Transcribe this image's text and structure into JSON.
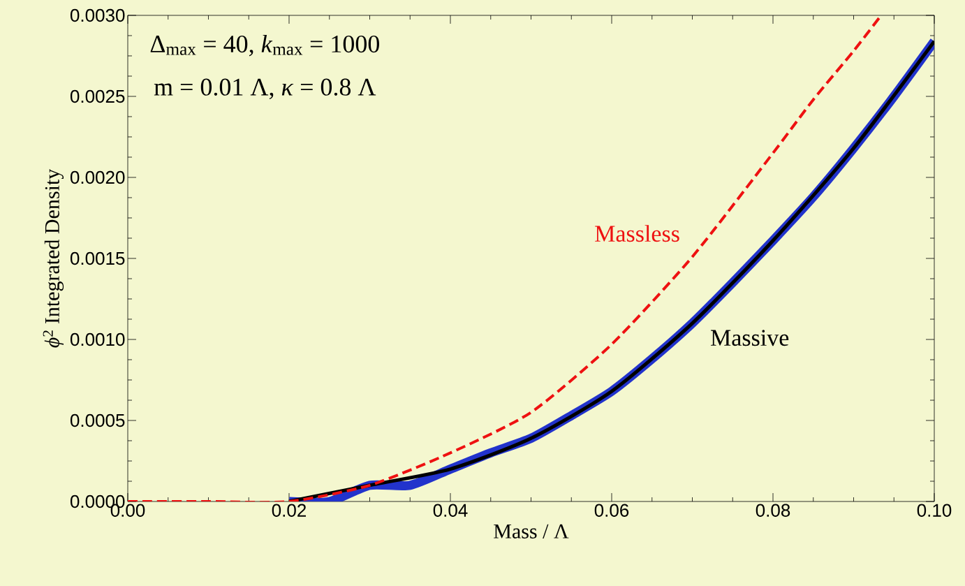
{
  "chart_data": {
    "type": "line",
    "xlabel": "Mass / Λ",
    "ylabel": "*ϕ*$^{2}$ Integrated Density",
    "xlim": [
      0,
      0.1
    ],
    "ylim": [
      0,
      0.003
    ],
    "xticks": [
      {
        "value": 0,
        "label": "0.00"
      },
      {
        "value": 0.02,
        "label": "0.02"
      },
      {
        "value": 0.04,
        "label": "0.04"
      },
      {
        "value": 0.06,
        "label": "0.06"
      },
      {
        "value": 0.08,
        "label": "0.08"
      },
      {
        "value": 0.1,
        "label": "0.10"
      }
    ],
    "yticks": [
      {
        "value": 0,
        "label": "0.0000"
      },
      {
        "value": 0.0005,
        "label": "0.0005"
      },
      {
        "value": 0.001,
        "label": "0.0010"
      },
      {
        "value": 0.0015,
        "label": "0.0015"
      },
      {
        "value": 0.002,
        "label": "0.0020"
      },
      {
        "value": 0.0025,
        "label": "0.0025"
      },
      {
        "value": 0.003,
        "label": "0.0030"
      }
    ],
    "grid": false,
    "annotations": [
      "Δ$_{max}$ = 40, *k*$_{max}$ = 1000",
      "m = 0.01 Λ, *κ* = 0.8 Λ"
    ],
    "series": [
      {
        "color": "#2233cc",
        "line_style": "solid",
        "x": [
          0.02,
          0.025,
          0.03,
          0.035,
          0.04,
          0.045,
          0.05,
          0.055,
          0.06,
          0.065,
          0.07,
          0.075,
          0.08,
          0.085,
          0.09,
          0.095,
          0.1
        ],
        "values": [
          0,
          0,
          0.0001,
          0.0001,
          0.0002,
          0.0003,
          0.00039,
          0.00053,
          0.00068,
          0.00088,
          0.0011,
          0.00135,
          0.00161,
          0.00188,
          0.00218,
          0.0025,
          0.00284
        ]
      },
      {
        "name": "Massive",
        "color": "#000000",
        "line_style": "solid",
        "x": [
          0.02,
          0.03,
          0.04,
          0.05,
          0.06,
          0.07,
          0.08,
          0.09,
          0.1
        ],
        "values": [
          0,
          0.0001,
          0.0002,
          0.00039,
          0.00068,
          0.0011,
          0.00161,
          0.00218,
          0.00284
        ]
      },
      {
        "name": "Massless",
        "color": "#ee1111",
        "line_style": "dashed",
        "x": [
          0,
          0.01,
          0.02,
          0.03,
          0.04,
          0.05,
          0.06,
          0.07,
          0.08,
          0.085,
          0.09,
          0.0934
        ],
        "values": [
          0,
          0,
          0,
          0.0001,
          0.0003,
          0.00055,
          0.00097,
          0.00151,
          0.00215,
          0.00248,
          0.00278,
          0.003
        ]
      }
    ]
  }
}
